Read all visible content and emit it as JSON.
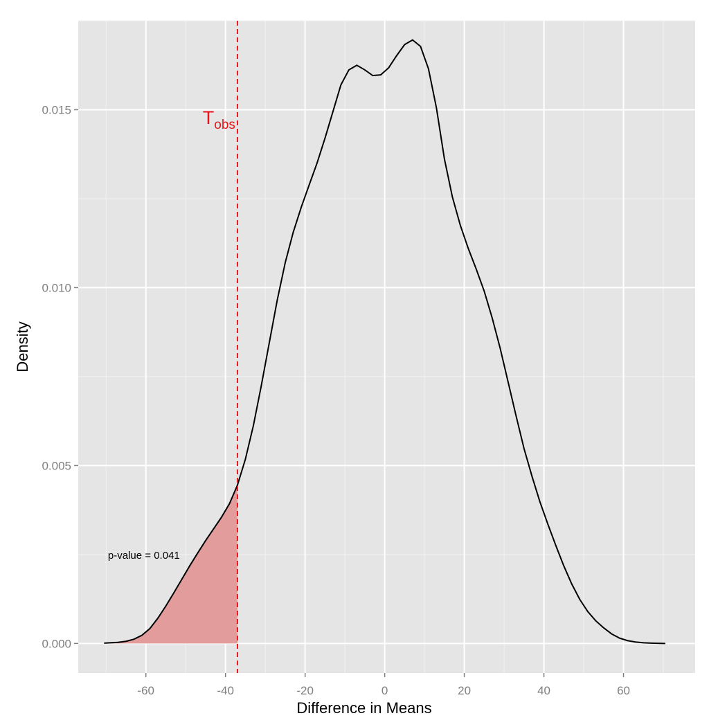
{
  "chart_data": {
    "type": "area",
    "title": "",
    "xlabel": "Difference in Means",
    "ylabel": "Density",
    "xlim": [
      -77,
      78
    ],
    "ylim": [
      -0.00083,
      0.0175
    ],
    "x_ticks": [
      -60,
      -40,
      -20,
      0,
      20,
      40,
      60
    ],
    "x_tick_labels": [
      "-60",
      "-40",
      "-20",
      "0",
      "20",
      "40",
      "60"
    ],
    "y_ticks": [
      0,
      0.005,
      0.01,
      0.015
    ],
    "y_tick_labels": [
      "0.000",
      "0.005",
      "0.010",
      "0.015"
    ],
    "grid": true,
    "background_color": "#e5e5e5",
    "grid_color": "#ffffff",
    "curve_color": "#000000",
    "shade_color": "#e39c9c",
    "obs_line_color": "#e8161b",
    "series": [
      {
        "x": [
          -70.5,
          -67,
          -65,
          -63,
          -61,
          -59,
          -57,
          -55,
          -53,
          -51,
          -49,
          -47,
          -45,
          -43,
          -41,
          -39,
          -37,
          -35,
          -33,
          -31,
          -29,
          -27,
          -25,
          -23,
          -21,
          -19,
          -17,
          -15,
          -13,
          -11,
          -9,
          -7,
          -5,
          -3,
          -1,
          1,
          3,
          5,
          7,
          9,
          11,
          13,
          15,
          17,
          19,
          21,
          23,
          25,
          27,
          29,
          31,
          33,
          35,
          37,
          39,
          41,
          43,
          45,
          47,
          49,
          51,
          53,
          55,
          57,
          59,
          61,
          63,
          65,
          67,
          70.5
        ],
        "y": [
          1e-05,
          3e-05,
          6e-05,
          0.00012,
          0.00023,
          0.00042,
          0.00071,
          0.00105,
          0.00142,
          0.0018,
          0.00218,
          0.00254,
          0.00289,
          0.00322,
          0.00355,
          0.00393,
          0.00445,
          0.00518,
          0.00612,
          0.00725,
          0.00845,
          0.00965,
          0.0107,
          0.01155,
          0.01225,
          0.01288,
          0.0135,
          0.0142,
          0.01495,
          0.0157,
          0.01612,
          0.01625,
          0.01612,
          0.01596,
          0.01598,
          0.01618,
          0.01652,
          0.01683,
          0.01696,
          0.01678,
          0.01615,
          0.01505,
          0.01362,
          0.01255,
          0.01175,
          0.0111,
          0.01052,
          0.0099,
          0.00915,
          0.0083,
          0.00735,
          0.0064,
          0.00548,
          0.0047,
          0.00398,
          0.00335,
          0.00275,
          0.00218,
          0.00167,
          0.00124,
          0.0009,
          0.00064,
          0.00044,
          0.00027,
          0.00015,
          8e-05,
          4e-05,
          2e-05,
          1e-05,
          0
        ]
      }
    ],
    "t_obs": -37,
    "shaded_region": [
      -70.5,
      -37
    ],
    "t_obs_label": {
      "main": "T",
      "sub": "obs"
    },
    "annotation": {
      "text": "p-value = 0.041",
      "x": -60.5,
      "y": 0.00248
    }
  }
}
